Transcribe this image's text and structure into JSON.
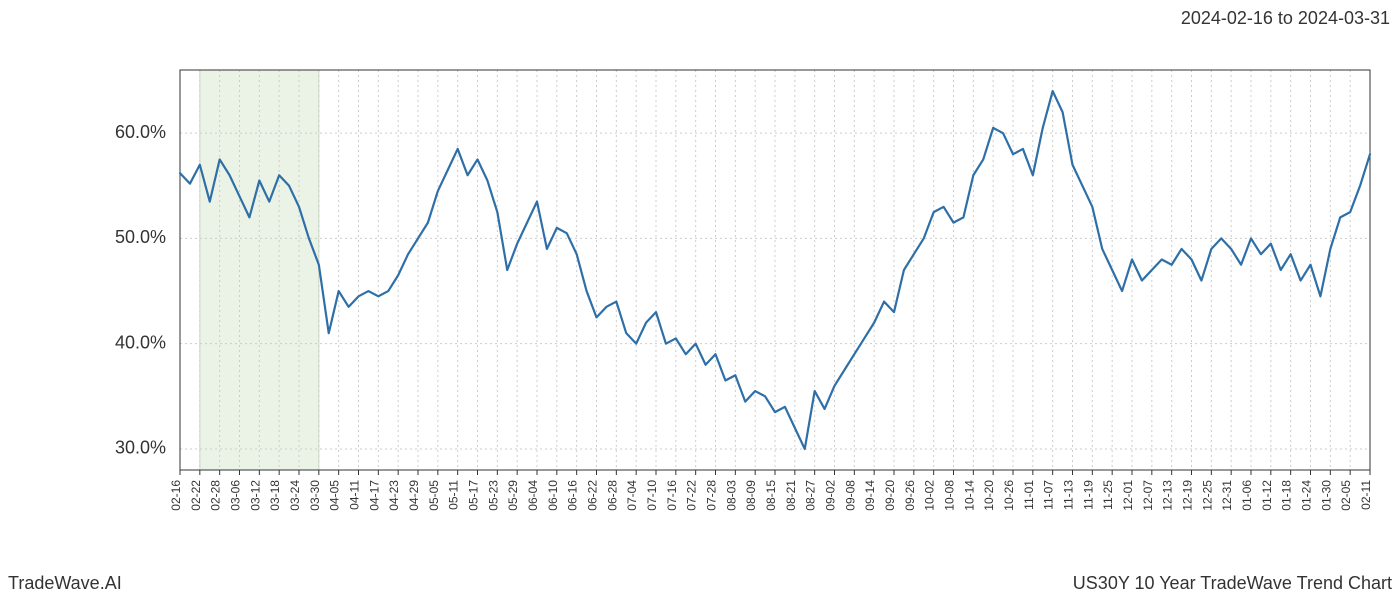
{
  "header": {
    "date_range": "2024-02-16 to 2024-03-31"
  },
  "footer": {
    "left": "TradeWave.AI",
    "right": "US30Y 10 Year TradeWave Trend Chart"
  },
  "chart": {
    "type": "line",
    "background_color": "#ffffff",
    "plot_border_color": "#333333",
    "plot_border_width": 1,
    "line_color": "#2f6fa7",
    "line_width": 2.2,
    "grid_color": "#cccccc",
    "grid_dash": "2,3",
    "highlight_band": {
      "fill": "#d9ead3",
      "opacity": 0.55,
      "stroke": "#9fbf8f",
      "x_start_index": 1,
      "x_end_index": 7
    },
    "y_axis": {
      "min": 28,
      "max": 66,
      "ticks": [
        30,
        40,
        50,
        60
      ],
      "tick_labels": [
        "30.0%",
        "40.0%",
        "50.0%",
        "60.0%"
      ],
      "label_fontsize": 18
    },
    "x_axis": {
      "labels": [
        "02-16",
        "02-22",
        "02-28",
        "03-06",
        "03-12",
        "03-18",
        "03-24",
        "03-30",
        "04-05",
        "04-11",
        "04-17",
        "04-23",
        "04-29",
        "05-05",
        "05-11",
        "05-17",
        "05-23",
        "05-29",
        "06-04",
        "06-10",
        "06-16",
        "06-22",
        "06-28",
        "07-04",
        "07-10",
        "07-16",
        "07-22",
        "07-28",
        "08-03",
        "08-09",
        "08-15",
        "08-21",
        "08-27",
        "09-02",
        "09-08",
        "09-14",
        "09-20",
        "09-26",
        "10-02",
        "10-08",
        "10-14",
        "10-20",
        "10-26",
        "11-01",
        "11-07",
        "11-13",
        "11-19",
        "11-25",
        "12-01",
        "12-07",
        "12-13",
        "12-19",
        "12-25",
        "12-31",
        "01-06",
        "01-12",
        "01-18",
        "01-24",
        "01-30",
        "02-05",
        "02-11"
      ],
      "label_fontsize": 12,
      "label_rotation": -90
    },
    "series": [
      56.2,
      55.2,
      57.0,
      53.5,
      57.5,
      56.0,
      54.0,
      52.0,
      55.5,
      53.5,
      56.0,
      55.0,
      53.0,
      50.0,
      47.5,
      41.0,
      45.0,
      43.5,
      44.5,
      45.0,
      44.5,
      45.0,
      46.5,
      48.5,
      50.0,
      51.5,
      54.5,
      56.5,
      58.5,
      56.0,
      57.5,
      55.5,
      52.5,
      47.0,
      49.5,
      51.5,
      53.5,
      49.0,
      51.0,
      50.5,
      48.5,
      45.0,
      42.5,
      43.5,
      44.0,
      41.0,
      40.0,
      42.0,
      43.0,
      40.0,
      40.5,
      39.0,
      40.0,
      38.0,
      39.0,
      36.5,
      37.0,
      34.5,
      35.5,
      35.0,
      33.5,
      34.0,
      32.0,
      30.0,
      35.5,
      33.8,
      36.0,
      37.5,
      39.0,
      40.5,
      42.0,
      44.0,
      43.0,
      47.0,
      48.5,
      50.0,
      52.5,
      53.0,
      51.5,
      52.0,
      56.0,
      57.5,
      60.5,
      60.0,
      58.0,
      58.5,
      56.0,
      60.5,
      64.0,
      62.0,
      57.0,
      55.0,
      53.0,
      49.0,
      47.0,
      45.0,
      48.0,
      46.0,
      47.0,
      48.0,
      47.5,
      49.0,
      48.0,
      46.0,
      49.0,
      50.0,
      49.0,
      47.5,
      50.0,
      48.5,
      49.5,
      47.0,
      48.5,
      46.0,
      47.5,
      44.5,
      49.0,
      52.0,
      52.5,
      55.0,
      58.0
    ]
  }
}
